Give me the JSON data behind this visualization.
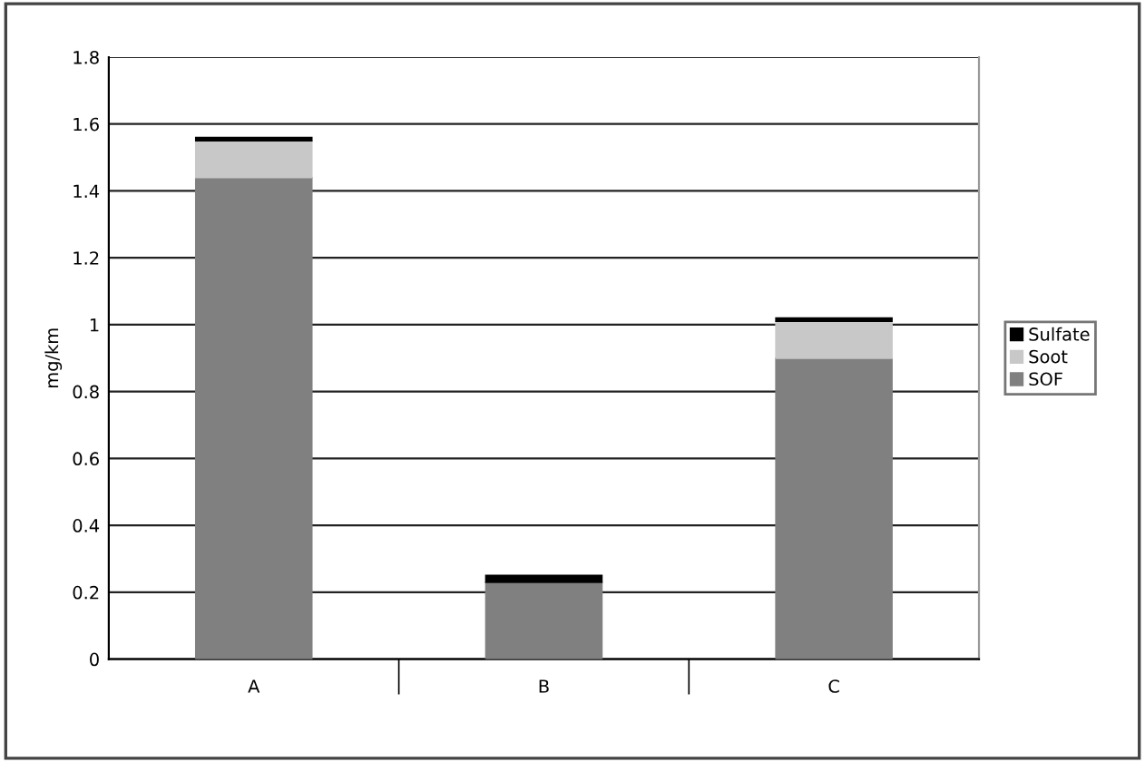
{
  "chart_data": {
    "type": "bar",
    "stacked": true,
    "ylabel": "mg/km",
    "categories": [
      "A",
      "B",
      "C"
    ],
    "series": [
      {
        "name": "SOF",
        "color": "#808080",
        "values": [
          1.44,
          0.23,
          0.9
        ]
      },
      {
        "name": "Soot",
        "color": "#c8c8c8",
        "values": [
          0.11,
          0,
          0.11
        ]
      },
      {
        "name": "Sulfate",
        "color": "#000000",
        "values": [
          0.01,
          0.02,
          0.01
        ]
      }
    ],
    "ylim": [
      0,
      1.8
    ],
    "yticks": [
      0,
      0.2,
      0.4,
      0.6,
      0.8,
      1,
      1.2,
      1.4,
      1.6,
      1.8
    ],
    "grid": "y",
    "legend": "right"
  }
}
